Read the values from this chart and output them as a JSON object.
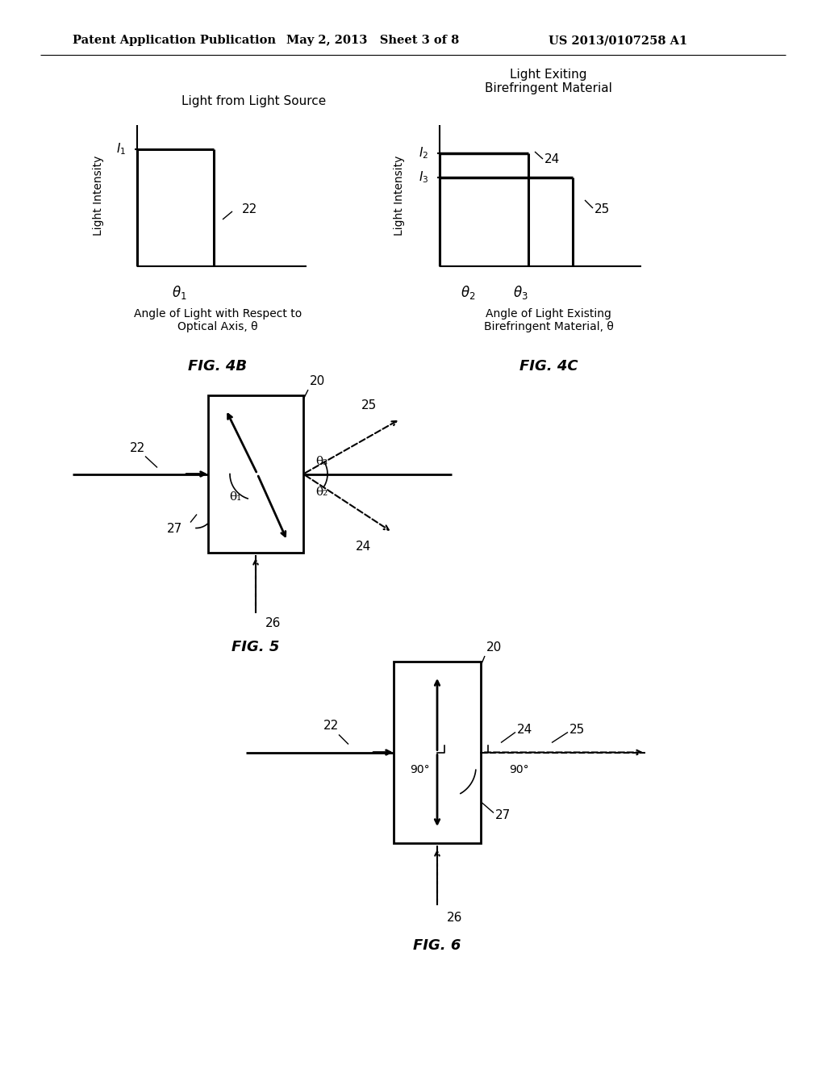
{
  "bg_color": "#ffffff",
  "header_text": "Patent Application Publication",
  "header_date": "May 2, 2013   Sheet 3 of 8",
  "header_patent": "US 2013/0107258 A1",
  "fig4b_title": "Light from Light Source",
  "fig4b_ylabel": "Light Intensity",
  "fig4b_xlabel2": "Angle of Light with Respect to\nOptical Axis, θ",
  "fig4b_label": "FIG. 4B",
  "fig4b_ref22": "22",
  "fig4c_title": "Light Exiting\nBirefringent Material",
  "fig4c_ylabel": "Light Intensity",
  "fig4c_xlabel3": "Angle of Light Existing\nBirefringent Material, θ",
  "fig4c_label": "FIG. 4C",
  "fig4c_ref24": "24",
  "fig4c_ref25": "25",
  "fig5_label": "FIG. 5",
  "fig5_ref20": "20",
  "fig5_ref22": "22",
  "fig5_ref24": "24",
  "fig5_ref25": "25",
  "fig5_ref26": "26",
  "fig5_ref27": "27",
  "fig5_theta1": "θ₁",
  "fig5_theta2": "θ₂",
  "fig5_theta3": "θ₃",
  "fig6_label": "FIG. 6",
  "fig6_ref20": "20",
  "fig6_ref22": "22",
  "fig6_ref24": "24",
  "fig6_ref25": "25",
  "fig6_ref26": "26",
  "fig6_ref27": "27",
  "fig6_90left": "90°",
  "fig6_90right": "90°"
}
